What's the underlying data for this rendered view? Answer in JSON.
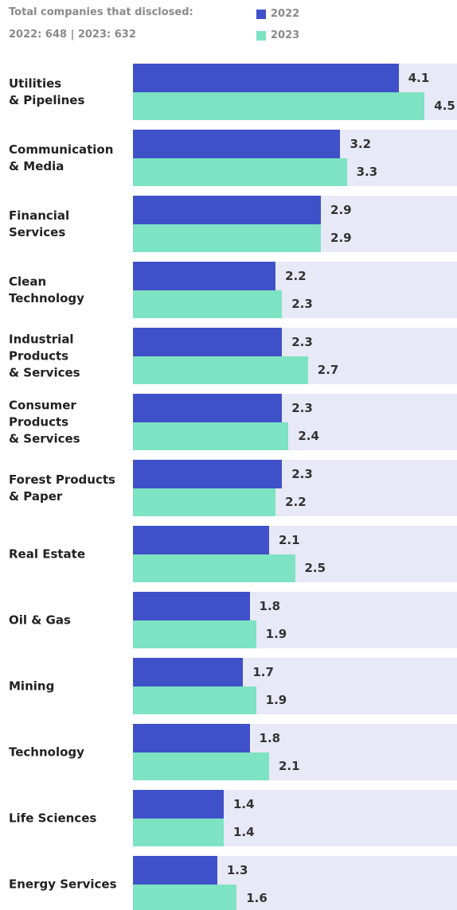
{
  "chart_data": {
    "type": "bar",
    "orientation": "horizontal",
    "subtitle": [
      "Total companies that disclosed:",
      "2022: 648 | 2023: 632"
    ],
    "categories": [
      "Utilities\n& Pipelines",
      "Communication\n& Media",
      "Financial\nServices",
      "Clean\nTechnology",
      "Industrial\nProducts\n& Services",
      "Consumer\nProducts\n& Services",
      "Forest Products\n& Paper",
      "Real Estate",
      "Oil & Gas",
      "Mining",
      "Technology",
      "Life Sciences",
      "Energy Services"
    ],
    "series": [
      {
        "name": "2022",
        "color": "#3f51c8",
        "values": [
          4.1,
          3.2,
          2.9,
          2.2,
          2.3,
          2.3,
          2.3,
          2.1,
          1.8,
          1.7,
          1.8,
          1.4,
          1.3
        ]
      },
      {
        "name": "2023",
        "color": "#7de3c3",
        "values": [
          4.5,
          3.3,
          2.9,
          2.3,
          2.7,
          2.4,
          2.2,
          2.5,
          1.9,
          1.9,
          2.1,
          1.4,
          1.6
        ]
      }
    ],
    "xlim": [
      0,
      5
    ],
    "background_color": "#e8e9f7"
  }
}
